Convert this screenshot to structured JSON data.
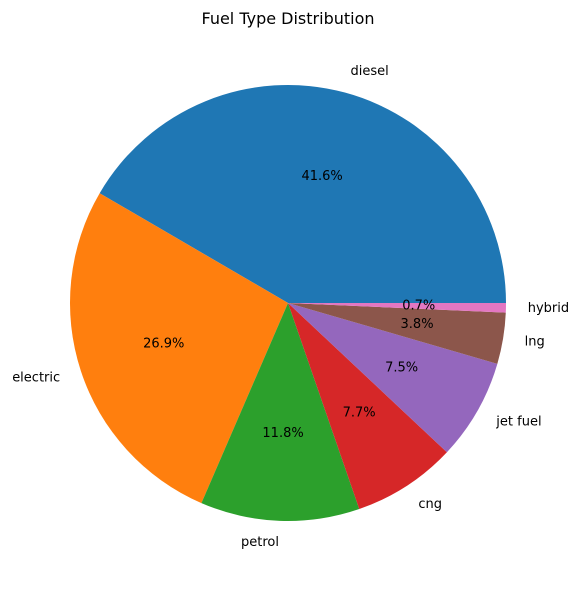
{
  "chart_data": {
    "type": "pie",
    "title": "Fuel Type Distribution",
    "slices": [
      {
        "label": "diesel",
        "percent": 41.6,
        "display": "41.6%",
        "color": "#1f77b4"
      },
      {
        "label": "electric",
        "percent": 26.9,
        "display": "26.9%",
        "color": "#ff7f0e"
      },
      {
        "label": "petrol",
        "percent": 11.8,
        "display": "11.8%",
        "color": "#2ca02c"
      },
      {
        "label": "cng",
        "percent": 7.7,
        "display": "7.7%",
        "color": "#d62728"
      },
      {
        "label": "jet fuel",
        "percent": 7.5,
        "display": "7.5%",
        "color": "#9467bd"
      },
      {
        "label": "lng",
        "percent": 3.8,
        "display": "3.8%",
        "color": "#8c564b"
      },
      {
        "label": "hybrid",
        "percent": 0.7,
        "display": "0.7%",
        "color": "#e377c2"
      }
    ],
    "start_angle": "0 degrees (3 o'clock), counter-clockwise",
    "legend": "none"
  }
}
